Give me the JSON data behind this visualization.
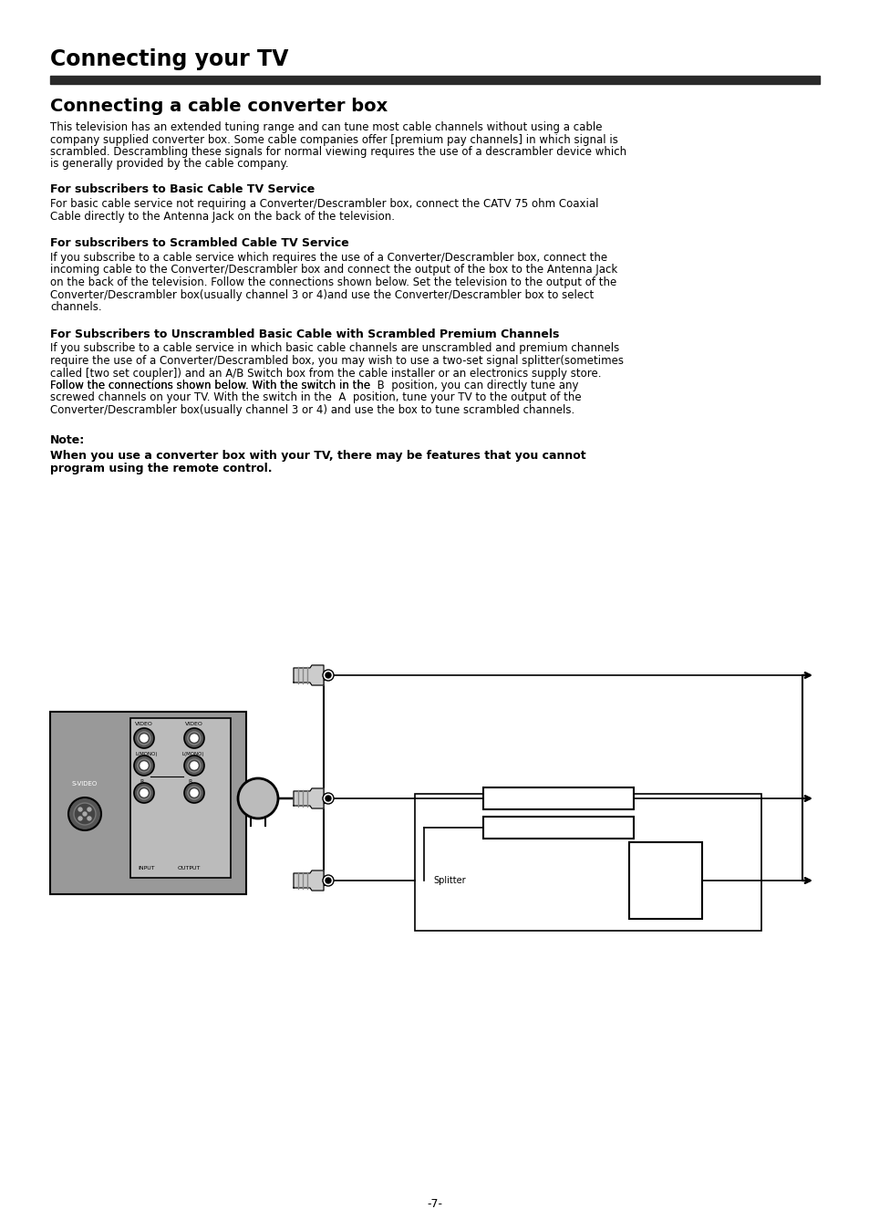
{
  "title": "Connecting your TV",
  "subtitle": "Connecting a cable converter box",
  "bg_color": "#ffffff",
  "text_color": "#000000",
  "header_bar_color": "#2a2a2a",
  "page_number": "-7-",
  "body_text": "This television has an extended tuning range and can tune most cable channels without using a cable\ncompany supplied converter box. Some cable companies offer [premium pay channels] in which signal is\nscrambled. Descrambling these signals for normal viewing requires the use of a descrambler device which\nis generally provided by the cable company.",
  "section1_title": "For subscribers to Basic Cable TV Service",
  "section1_body": "For basic cable service not requiring a Converter/Descrambler box, connect the CATV 75 ohm Coaxial\nCable directly to the Antenna Jack on the back of the television.",
  "section2_title": "For subscribers to Scrambled Cable TV Service",
  "section2_body": "If you subscribe to a cable service which requires the use of a Converter/Descrambler box, connect the\nincoming cable to the Converter/Descrambler box and connect the output of the box to the Antenna Jack\non the back of the television. Follow the connections shown below. Set the television to the output of the\nConverter/Descrambler box(usually channel 3 or 4)and use the Converter/Descrambler box to select\nchannels.",
  "section3_title": "For Subscribers to Unscrambled Basic Cable with Scrambled Premium Channels",
  "section3_body_1": "If you subscribe to a cable service in which basic cable channels are unscrambled and premium channels\nrequire the use of a Converter/Descrambled box, you may wish to use a two-set signal splitter(sometimes\ncalled [two set coupler]) and an A/B Switch box from the cable installer or an electronics supply store.\nFollow the connections shown below. With the switch in the ",
  "section3_bold1": "B",
  "section3_body_2": " position, you can directly tune any\nscrewed channels on your TV. With the switch in the ",
  "section3_bold2": "A",
  "section3_body_3": " position, tune your TV to the output of the\nConverter/Descrambler box(usually channel 3 or 4) and use the box to tune scrambled channels.",
  "note_label": "Note:",
  "note_text": "When you use a converter box with your TV, there may be features that you cannot\nprogram using the remote control.",
  "tv_color": "#888888",
  "tv_inner_color": "#aaaaaa",
  "tv_border_color": "#000000",
  "diagram_line_color": "#000000"
}
